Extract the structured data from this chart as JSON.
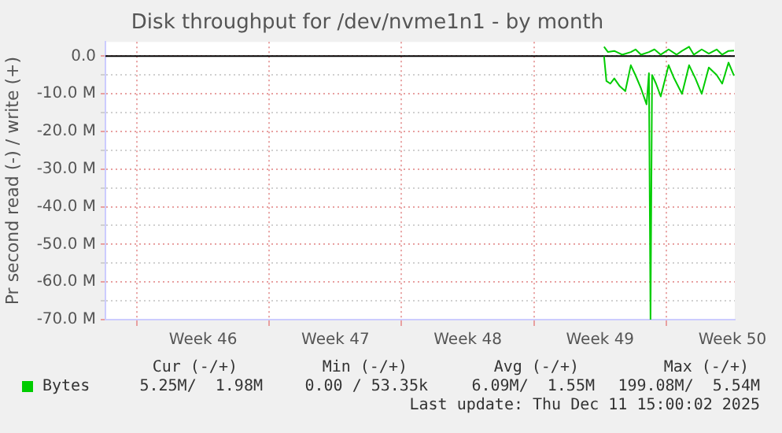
{
  "chart_data": {
    "type": "line",
    "title": "Disk throughput for /dev/nvme1n1 - by month",
    "ylabel": "Pr second read (-) / write (+)",
    "xlim": [
      "2025-11-08T08:00",
      "2025-12-11T15:00"
    ],
    "ylim": [
      -70,
      3.8
    ],
    "xticks": [
      {
        "value": "2025-11-10",
        "label": null
      },
      {
        "value": "2025-11-13T12:00",
        "label": "Week 46"
      },
      {
        "value": "2025-11-17",
        "label": null
      },
      {
        "value": "2025-11-20T12:00",
        "label": "Week 47"
      },
      {
        "value": "2025-11-24",
        "label": null
      },
      {
        "value": "2025-11-27T12:00",
        "label": "Week 48"
      },
      {
        "value": "2025-12-01",
        "label": null
      },
      {
        "value": "2025-12-04T12:00",
        "label": "Week 49"
      },
      {
        "value": "2025-12-08",
        "label": null
      },
      {
        "value": "2025-12-11T12:00",
        "label": "Week 50"
      }
    ],
    "yticks": [
      {
        "value": 0,
        "label": "0.0"
      },
      {
        "value": -5,
        "label": null
      },
      {
        "value": -10,
        "label": "-10.0 M"
      },
      {
        "value": -15,
        "label": null
      },
      {
        "value": -20,
        "label": "-20.0 M"
      },
      {
        "value": -25,
        "label": null
      },
      {
        "value": -30,
        "label": "-30.0 M"
      },
      {
        "value": -35,
        "label": null
      },
      {
        "value": -40,
        "label": "-40.0 M"
      },
      {
        "value": -45,
        "label": null
      },
      {
        "value": -50,
        "label": "-50.0 M"
      },
      {
        "value": -55,
        "label": null
      },
      {
        "value": -60,
        "label": "-60.0 M"
      },
      {
        "value": -65,
        "label": null
      },
      {
        "value": -70,
        "label": "-70.0 M"
      }
    ],
    "grid": true,
    "legend": "bottom left",
    "marker": "none",
    "line_style": "solid",
    "ref_lines": [
      {
        "axis": "y",
        "value": 0,
        "color": "#000000"
      }
    ],
    "series": [
      {
        "name": "Bytes",
        "color": "#00cc00",
        "x": [
          "2025-12-04T17:00",
          "2025-12-04T22:00",
          "2025-12-05T06:00",
          "2025-12-05T16:00",
          "2025-12-06T03:00",
          "2025-12-06T09:00",
          "2025-12-06T16:00",
          "2025-12-07T02:00",
          "2025-12-07T09:00",
          "2025-12-07T17:00",
          "2025-12-08T03:00",
          "2025-12-08T13:00",
          "2025-12-08T20:00",
          "2025-12-09T05:00",
          "2025-12-09T11:00",
          "2025-12-09T21:00",
          "2025-12-10T06:00",
          "2025-12-10T16:00",
          "2025-12-10T23:00",
          "2025-12-11T07:00",
          "2025-12-11T14:00"
        ],
        "values": [
          2.5,
          1.1,
          1.4,
          0.4,
          1.1,
          1.8,
          0.4,
          1.1,
          1.8,
          0.4,
          1.8,
          0.4,
          1.4,
          2.5,
          0.4,
          1.8,
          0.7,
          1.8,
          0.4,
          1.4,
          1.5
        ]
      },
      {
        "color": "#00cc00",
        "x": [
          "2025-12-04T17:00",
          "2025-12-04T20:00",
          "2025-12-05T01:00",
          "2025-12-05T06:00",
          "2025-12-05T13:00",
          "2025-12-05T20:00",
          "2025-12-06T03:00",
          "2025-12-06T09:00",
          "2025-12-06T16:00",
          "2025-12-06T23:00",
          "2025-12-07T02:00",
          "2025-12-07T04:00",
          "2025-12-07T06:00",
          "2025-12-07T11:00",
          "2025-12-07T17:00",
          "2025-12-08T03:00",
          "2025-12-08T10:00",
          "2025-12-08T20:00",
          "2025-12-09T05:00",
          "2025-12-09T13:00",
          "2025-12-09T21:00",
          "2025-12-10T06:00",
          "2025-12-10T16:00",
          "2025-12-10T23:00",
          "2025-12-11T07:00",
          "2025-12-11T14:00"
        ],
        "values": [
          0,
          -6.6,
          -7.3,
          -5.9,
          -8,
          -9.3,
          -2.4,
          -5.1,
          -8.6,
          -12.8,
          -4.5,
          -70,
          -5,
          -7.3,
          -10.7,
          -2.4,
          -5.9,
          -10,
          -2.4,
          -5.9,
          -10,
          -3,
          -5,
          -7.3,
          -1.7,
          -5.2
        ]
      }
    ],
    "annotations": [
      "Cur (-/+)",
      "Min (-/+)",
      "Avg (-/+)",
      "Max (-/+)",
      "5.25M/  1.98M",
      "0.00 / 53.35k",
      "6.09M/  1.55M",
      "199.08M/  5.54M",
      "Last update: Thu Dec 11 15:00:02 2025"
    ]
  }
}
